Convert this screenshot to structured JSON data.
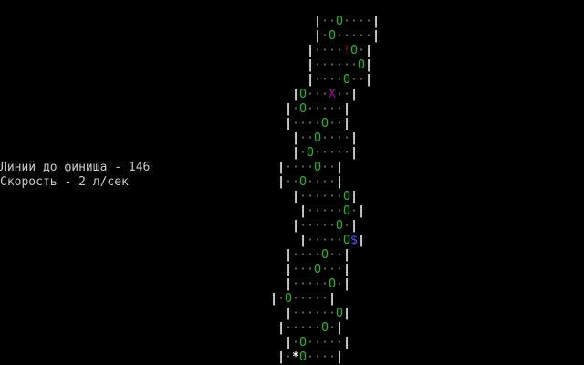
{
  "hud": {
    "lines_to_finish": "Линий до финиша - 146",
    "speed": "Скорость - 2 л/сек"
  },
  "colors": {
    "wall": "#ffffff",
    "road": "#7a7a7a",
    "obstacle": "#22bb22",
    "exclamation": "#aa0000",
    "enemy": "#aa00aa",
    "money": "#5555ff",
    "player": "#ffffff",
    "hud_text": "#c8c8c8"
  },
  "legend": {
    "|": "wall",
    ".": "road",
    "O": "obstacle",
    "!": "exclamation",
    "X": "enemy",
    "$": "money",
    "*": "player"
  },
  "road_rows": [
    "",
    "                                           |..O....|",
    "                                           |.O.....|",
    "                                          |....!O.|",
    "                                          |......O|",
    "                                          |....O..|",
    "                                        |O...X..|",
    "                                       |.O.....|",
    "                                       |....O..|",
    "                                        |..O....|",
    "                                        |.O.....|",
    "                                      |....O..|",
    "                                      |..O....|",
    "                                        |......O|",
    "                                         |.....O.|",
    "                                        |.....O.|",
    "                                         |.....O$|",
    "                                       |....O..|",
    "                                       |...O...|",
    "                                       |.....O.|",
    "                                     |.O.....|",
    "                                       |......O|",
    "                                      |.....O.|",
    "                                       |.O.....|",
    "                                      |.*O....|"
  ]
}
